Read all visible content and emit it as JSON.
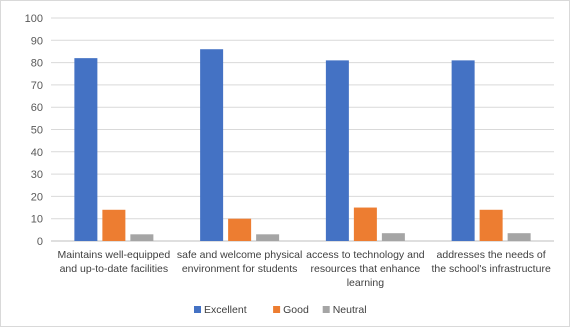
{
  "chart_data": {
    "type": "bar",
    "title": "",
    "xlabel": "",
    "ylabel": "",
    "ylim": [
      0,
      100
    ],
    "yticks": [
      0,
      10,
      20,
      30,
      40,
      50,
      60,
      70,
      80,
      90,
      100
    ],
    "grid": true,
    "legend_position": "bottom",
    "categories": [
      [
        "Maintains well-equipped",
        "and up-to-date facilities"
      ],
      [
        "safe and welcome physical",
        "environment for students"
      ],
      [
        "access to technology and",
        "resources that enhance",
        "learning"
      ],
      [
        "addresses the needs of",
        "the school's infrastructure"
      ]
    ],
    "series": [
      {
        "name": "Excellent",
        "color": "#4472C4",
        "values": [
          82,
          86,
          81,
          81
        ]
      },
      {
        "name": "Good",
        "color": "#ED7D31",
        "values": [
          14,
          10,
          15,
          14
        ]
      },
      {
        "name": "Neutral",
        "color": "#A5A5A5",
        "values": [
          3,
          3,
          3.5,
          3.5
        ]
      }
    ]
  }
}
